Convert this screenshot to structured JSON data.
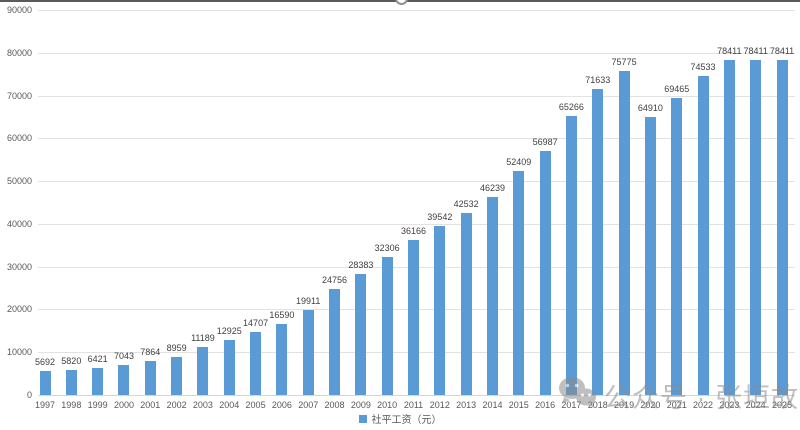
{
  "chart_data": {
    "type": "bar",
    "title": "",
    "categories": [
      "1997",
      "1998",
      "1999",
      "2000",
      "2001",
      "2002",
      "2003",
      "2004",
      "2005",
      "2006",
      "2007",
      "2008",
      "2009",
      "2010",
      "2011",
      "2012",
      "2013",
      "2014",
      "2015",
      "2016",
      "2017",
      "2018",
      "2019",
      "2020",
      "2021",
      "2022",
      "2023",
      "2024",
      "2025"
    ],
    "values": [
      5692,
      5820,
      6421,
      7043,
      7864,
      8959,
      11189,
      12925,
      14707,
      16590,
      19911,
      24756,
      28383,
      32306,
      36166,
      39542,
      42532,
      46239,
      52409,
      56987,
      65266,
      71633,
      75775,
      64910,
      69465,
      74533,
      78411,
      78411,
      78411
    ],
    "xlabel": "",
    "ylabel": "",
    "ylim": [
      0,
      90000
    ],
    "ytick_step": 10000,
    "grid": true,
    "legend_position": "bottom",
    "legend": [
      "社平工资（元）"
    ],
    "data_labels": true
  },
  "legend": {
    "label": "社平工资（元）",
    "marker_color": "#5B9BD5"
  },
  "watermark": {
    "icon": "wechat-icon",
    "text": "公众号 · 张垣故事"
  },
  "colors": {
    "bar": "#5B9BD5",
    "grid": "#E2E2E2",
    "axis_text": "#595959",
    "value_text": "#404040",
    "watermark": "#8C8C8C",
    "top_edge": "#5A5A5A"
  }
}
